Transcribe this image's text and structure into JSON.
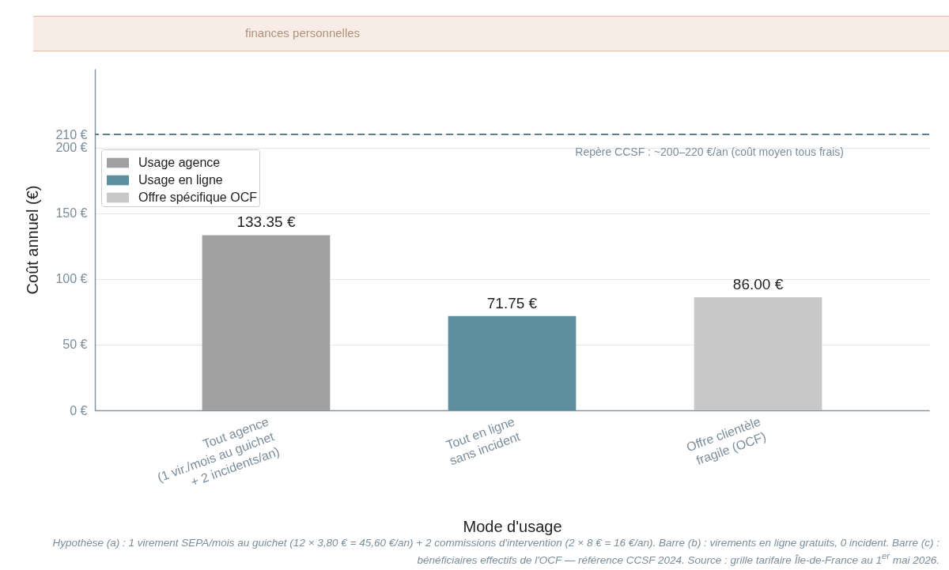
{
  "chart_data": {
    "type": "bar",
    "subtitle": "finances personnelles",
    "xlabel": "Mode d'usage",
    "ylabel": "Coût annuel (€)",
    "categories": [
      "Tout agence\n(1 vir./mois au guichet\n+ 2 incidents/an)",
      "Tout en ligne\nsans incident",
      "Offre clientèle\nfragile (OCF)"
    ],
    "series": [
      {
        "name": "Usage agence",
        "color": "#a0a0a0",
        "values": [
          133.35,
          null,
          null
        ],
        "value_labels": [
          "133.35 €",
          null,
          null
        ]
      },
      {
        "name": "Usage en ligne",
        "color": "#5e8f9f",
        "values": [
          null,
          71.75,
          null
        ],
        "value_labels": [
          null,
          "71.75 €",
          null
        ]
      },
      {
        "name": "Offre spécifique OCF",
        "color": "#c8c8c8",
        "values": [
          null,
          null,
          86
        ],
        "value_labels": [
          null,
          null,
          "86.00 €"
        ]
      }
    ],
    "ylim": [
      0,
      260
    ],
    "yticks": [
      {
        "value": 0,
        "label": "0 €"
      },
      {
        "value": 50,
        "label": "50 €"
      },
      {
        "value": 100,
        "label": "100 €"
      },
      {
        "value": 150,
        "label": "150 €"
      },
      {
        "value": 200,
        "label": "200 €"
      },
      {
        "value": 210,
        "label": "210 €"
      }
    ],
    "ref_lines": [
      {
        "axis": "y",
        "value": 210,
        "label": "Repère CCSF : ~200–220 €/an (coût moyen tous frais)",
        "color": "#5f7f91",
        "line_style": "dashed"
      }
    ],
    "grid": "y",
    "legend": "top left",
    "annotations": [
      "Hypothèse (a) : 1 virement SEPA/mois au guichet (12 × 3,80 € = 45,60 €/an) + 2 commissions d'intervention (2 × 8 € = 16 €/an). Barre (b) : virements en ligne gratuits, 0 incident. Barre (c) : bénéficiaires effectifs de l'OCF — référence CCSF 2024. Source : grille tarifaire Île-de-France au 1$^{er}$ mai 2026."
    ]
  }
}
